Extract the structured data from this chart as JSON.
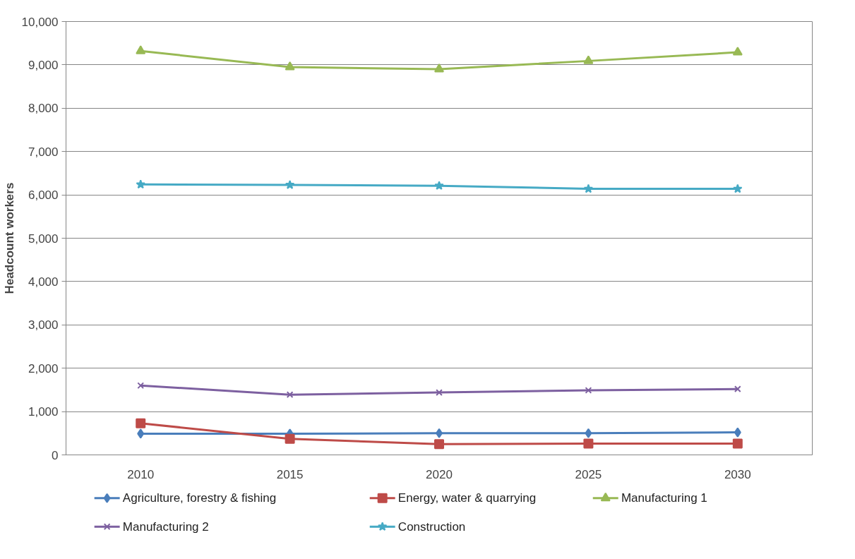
{
  "chart_data": {
    "type": "line",
    "ylabel": "Headcount workers",
    "categories": [
      "2010",
      "2015",
      "2020",
      "2025",
      "2030"
    ],
    "series": [
      {
        "name": "Agriculture, forestry & fishing",
        "color": "#4a7ebb",
        "marker": "diamond",
        "values": [
          490,
          490,
          500,
          500,
          520
        ]
      },
      {
        "name": "Energy, water & quarrying",
        "color": "#be4b48",
        "marker": "square",
        "values": [
          730,
          370,
          250,
          260,
          260
        ]
      },
      {
        "name": "Manufacturing 1",
        "color": "#98b954",
        "marker": "triangle",
        "values": [
          9320,
          8950,
          8900,
          9090,
          9290
        ]
      },
      {
        "name": "Manufacturing 2",
        "color": "#7d60a0",
        "marker": "cross",
        "values": [
          1600,
          1390,
          1440,
          1490,
          1520
        ]
      },
      {
        "name": "Construction",
        "color": "#46aac5",
        "marker": "star",
        "values": [
          6240,
          6230,
          6210,
          6140,
          6140
        ]
      }
    ],
    "ylim": [
      0,
      10000
    ],
    "yticks": [
      {
        "value": 0,
        "label": "0"
      },
      {
        "value": 1000,
        "label": "1,000"
      },
      {
        "value": 2000,
        "label": "2,000"
      },
      {
        "value": 3000,
        "label": "3,000"
      },
      {
        "value": 4000,
        "label": "4,000"
      },
      {
        "value": 5000,
        "label": "5,000"
      },
      {
        "value": 6000,
        "label": "6,000"
      },
      {
        "value": 7000,
        "label": "7,000"
      },
      {
        "value": 8000,
        "label": "8,000"
      },
      {
        "value": 9000,
        "label": "9,000"
      },
      {
        "value": 10000,
        "label": "10,000"
      }
    ],
    "grid": "y",
    "legend": "bottom",
    "line_style": "solid"
  }
}
